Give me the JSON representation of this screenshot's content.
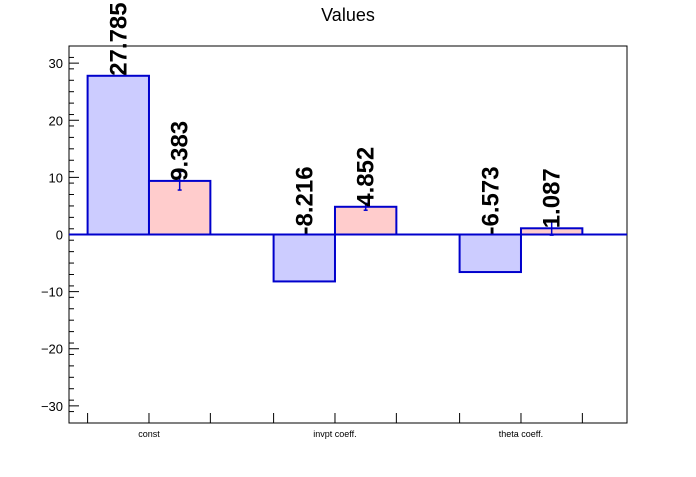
{
  "chart_data": {
    "type": "bar",
    "title": "Values",
    "xlabel": "",
    "ylabel": "",
    "categories": [
      "const",
      "invpt coeff.",
      "theta coeff."
    ],
    "series": [
      {
        "values": [
          27.785,
          -8.216,
          -6.573
        ],
        "value_labels": [
          "27.785",
          "-8.216",
          "-6.573"
        ],
        "errors": [
          0,
          0,
          0
        ],
        "fill": "#ccccff",
        "stroke": "#0000cc"
      },
      {
        "values": [
          9.383,
          4.852,
          1.087
        ],
        "value_labels": [
          "9.383",
          "4.852",
          "1.087"
        ],
        "errors": [
          1.6,
          0.6,
          1.2
        ],
        "fill": "#ffcccc",
        "stroke": "#0000cc"
      }
    ],
    "ylim": [
      -33,
      33
    ],
    "yticks": [
      -30,
      -20,
      -10,
      0,
      10,
      20,
      30
    ],
    "ytick_labels": [
      "−30",
      "−20",
      "−10",
      "0",
      "10",
      "20",
      "30"
    ],
    "grid": false,
    "legend": "none",
    "zero_line_color": "#0000cc"
  }
}
